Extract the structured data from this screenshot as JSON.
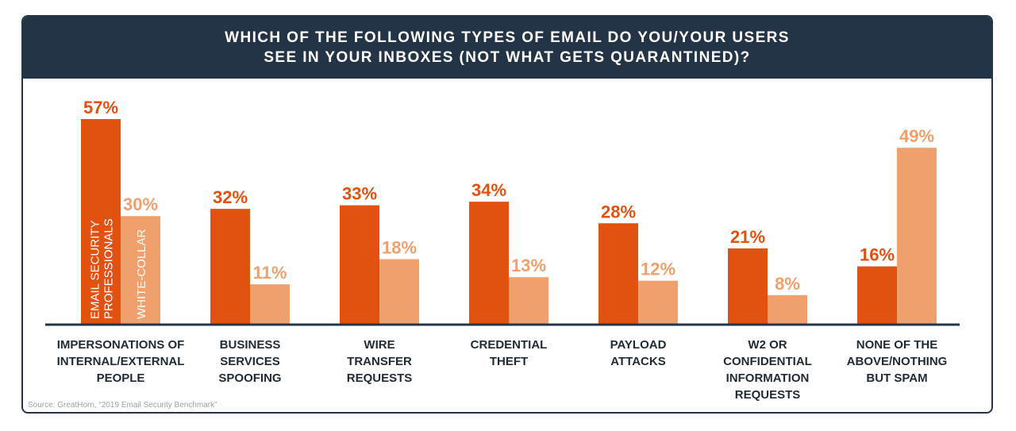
{
  "title_lines": [
    "WHICH OF THE FOLLOWING TYPES OF EMAIL DO YOU/YOUR USERS",
    "SEE IN YOUR INBOXES (NOT WHAT GETS QUARANTINED)?"
  ],
  "source": "Source: GreatHorn, “2019 Email Security Benchmark”",
  "colors": {
    "header_bg": "#243447",
    "series_primary": "#E1510F",
    "series_secondary": "#EFA06C",
    "axis": "#243447"
  },
  "chart_data": {
    "type": "bar",
    "title": "WHICH OF THE FOLLOWING TYPES OF EMAIL DO YOU/YOUR USERS SEE IN YOUR INBOXES (NOT WHAT GETS QUARANTINED)?",
    "categories": [
      [
        "IMPERSONATIONS OF",
        "INTERNAL/EXTERNAL",
        "PEOPLE"
      ],
      [
        "BUSINESS",
        "SERVICES",
        "SPOOFING"
      ],
      [
        "WIRE",
        "TRANSFER",
        "REQUESTS"
      ],
      [
        "CREDENTIAL",
        "THEFT"
      ],
      [
        "PAYLOAD",
        "ATTACKS"
      ],
      [
        "W2 OR",
        "CONFIDENTIAL",
        "INFORMATION",
        "REQUESTS"
      ],
      [
        "NONE OF THE",
        "ABOVE/NOTHING",
        "BUT SPAM"
      ]
    ],
    "series": [
      {
        "name": "EMAIL SECURITY PROFESSIONALS",
        "name_lines": [
          "EMAIL SECURITY",
          "PROFESSIONALS"
        ],
        "values": [
          57,
          32,
          33,
          34,
          28,
          21,
          16
        ],
        "labels": [
          "57%",
          "32%",
          "33%",
          "34%",
          "28%",
          "21%",
          "16%"
        ]
      },
      {
        "name": "WHITE-COLLAR",
        "name_lines": [
          "WHITE-COLLAR"
        ],
        "values": [
          30,
          11,
          18,
          13,
          12,
          8,
          49
        ],
        "labels": [
          "30%",
          "11%",
          "18%",
          "13%",
          "12%",
          "8%",
          "49%"
        ]
      }
    ],
    "ylim": [
      0,
      57
    ],
    "legend_placement": "inside-first-bars",
    "grid": false
  }
}
